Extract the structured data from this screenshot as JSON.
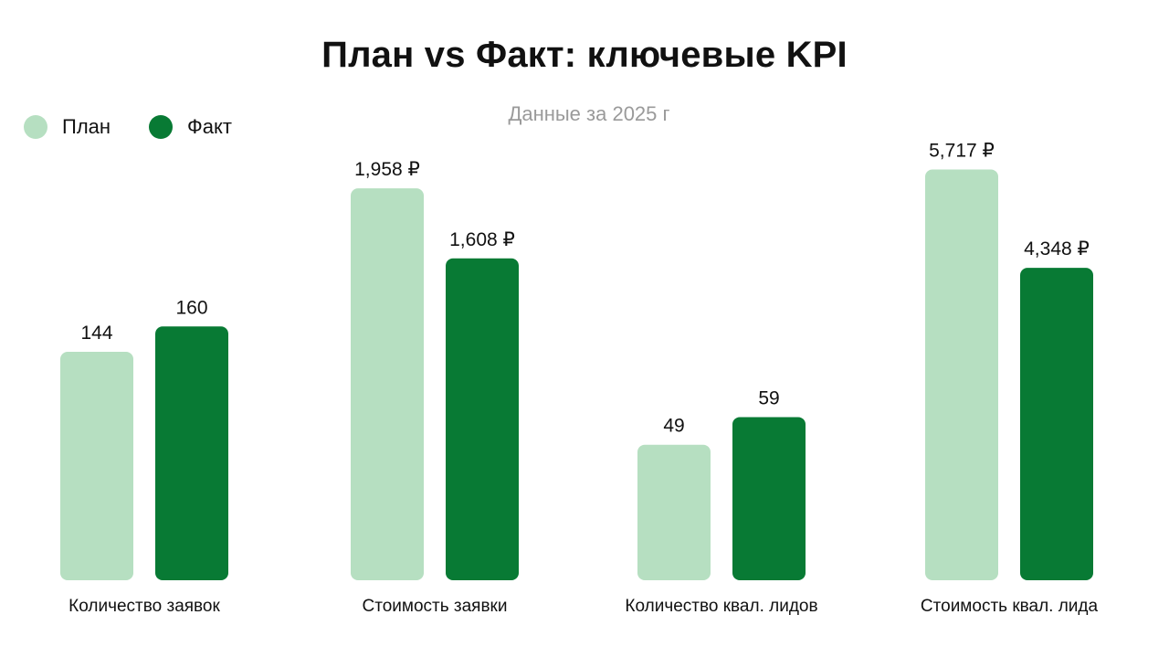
{
  "chart_data": {
    "type": "bar",
    "title": "План vs Факт: ключевые KPI",
    "subtitle": "Данные за 2025 г",
    "legend_position": "top-left",
    "grid": false,
    "categories": [
      "Количество заявок",
      "Стоимость заявки",
      "Количество квал. лидов",
      "Стоимость квал. лида"
    ],
    "series": [
      {
        "name": "План",
        "color": "#b6dfc1",
        "values": [
          144,
          1958,
          49,
          5717
        ],
        "labels": [
          "144",
          "1,958 ₽",
          "49",
          "5,717 ₽"
        ]
      },
      {
        "name": "Факт",
        "color": "#087a34",
        "values": [
          160,
          1608,
          59,
          4348
        ],
        "labels": [
          "160",
          "1,608 ₽",
          "59",
          "4,348 ₽"
        ]
      }
    ],
    "panel_max": [
      265,
      2100,
      152,
      5850
    ]
  }
}
